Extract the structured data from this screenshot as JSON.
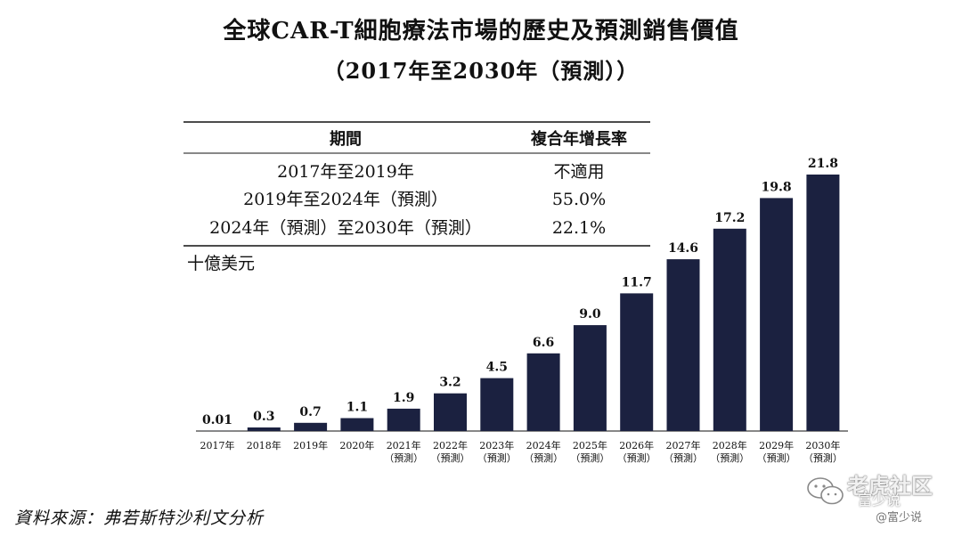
{
  "header": {
    "title_line1": "全球CAR-T細胞療法市場的歷史及預測銷售價值",
    "title_line2": "（2017年至2030年（預測））"
  },
  "cagr_table": {
    "headers": [
      "期間",
      "複合年增長率"
    ],
    "rows": [
      {
        "period": "2017年至2019年",
        "rate": "不適用"
      },
      {
        "period": "2019年至2024年（預測）",
        "rate": "55.0%"
      },
      {
        "period": "2024年（預測）至2030年（預測）",
        "rate": "22.1%"
      }
    ]
  },
  "chart_data": {
    "type": "bar",
    "unit_label": "十億美元",
    "categories": [
      "2017年",
      "2018年",
      "2019年",
      "2020年",
      "2021年",
      "2022年",
      "2023年",
      "2024年",
      "2025年",
      "2026年",
      "2027年",
      "2028年",
      "2029年",
      "2030年"
    ],
    "category_sublabels": [
      "",
      "",
      "",
      "",
      "（預測）",
      "（預測）",
      "（預測）",
      "（預測）",
      "（預測）",
      "（預測）",
      "（預測）",
      "（預測）",
      "（預測）",
      "（預測）"
    ],
    "values": [
      0.01,
      0.3,
      0.7,
      1.1,
      1.9,
      3.2,
      4.5,
      6.6,
      9.0,
      11.7,
      14.6,
      17.2,
      19.8,
      21.8
    ],
    "value_labels": [
      "0.01",
      "0.3",
      "0.7",
      "1.1",
      "1.9",
      "3.2",
      "4.5",
      "6.6",
      "9.0",
      "11.7",
      "14.6",
      "17.2",
      "19.8",
      "21.8"
    ],
    "ylim": [
      0,
      21.8
    ],
    "bar_color": "#1b2140",
    "grid": false,
    "legend": "none"
  },
  "footer": {
    "source": "資料來源：弗若斯特沙利文分析"
  },
  "watermark": {
    "main": "老虎社区",
    "sub": "富少说",
    "handle": "@富少说"
  }
}
